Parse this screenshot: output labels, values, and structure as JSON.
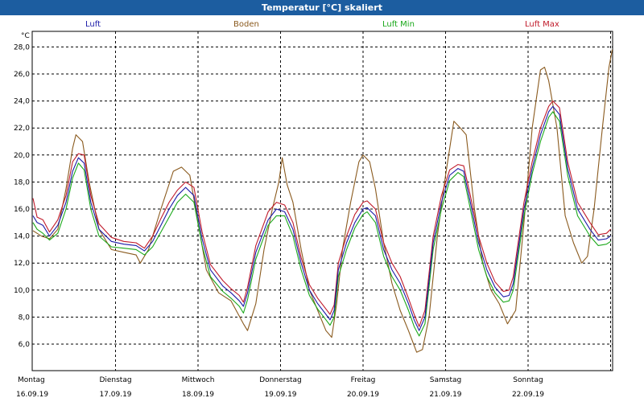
{
  "window": {
    "title": "Temperatur [°C] skaliert"
  },
  "chart_data": {
    "type": "line",
    "title": "Temperatur [°C] skaliert",
    "ylabel": "°C",
    "ylim": [
      4.5,
      29.0
    ],
    "yticks": [
      6.0,
      8.0,
      10.0,
      12.0,
      14.0,
      16.0,
      18.0,
      20.0,
      22.0,
      24.0,
      26.0,
      28.0
    ],
    "ytick_labels": [
      "6,0",
      "8,0",
      "10,0",
      "12,0",
      "14,0",
      "16,0",
      "18,0",
      "20,0",
      "22,0",
      "24,0",
      "26,0",
      "28,0"
    ],
    "xlim": [
      0,
      7.05
    ],
    "day_labels": [
      {
        "day": "Montag",
        "date": "16.09.19"
      },
      {
        "day": "Dienstag",
        "date": "17.09.19"
      },
      {
        "day": "Mittwoch",
        "date": "18.09.19"
      },
      {
        "day": "Donnerstag",
        "date": "19.09.19"
      },
      {
        "day": "Freitag",
        "date": "20.09.19"
      },
      {
        "day": "Samstag",
        "date": "21.09.19"
      },
      {
        "day": "Sonntag",
        "date": "22.09.19"
      }
    ],
    "grid": true,
    "legend_position": "top",
    "series": [
      {
        "name": "Luft",
        "color": "#1a1aa8",
        "points": [
          [
            0.0,
            15.5
          ],
          [
            0.05,
            15.0
          ],
          [
            0.12,
            14.8
          ],
          [
            0.2,
            14.0
          ],
          [
            0.3,
            14.8
          ],
          [
            0.4,
            16.5
          ],
          [
            0.48,
            18.8
          ],
          [
            0.55,
            19.8
          ],
          [
            0.62,
            19.4
          ],
          [
            0.7,
            16.5
          ],
          [
            0.8,
            14.5
          ],
          [
            0.95,
            13.6
          ],
          [
            1.1,
            13.4
          ],
          [
            1.25,
            13.3
          ],
          [
            1.35,
            12.9
          ],
          [
            1.45,
            13.6
          ],
          [
            1.55,
            14.8
          ],
          [
            1.65,
            16.0
          ],
          [
            1.75,
            17.0
          ],
          [
            1.85,
            17.6
          ],
          [
            1.95,
            17.0
          ],
          [
            2.05,
            13.8
          ],
          [
            2.15,
            11.5
          ],
          [
            2.3,
            10.3
          ],
          [
            2.4,
            9.8
          ],
          [
            2.5,
            9.2
          ],
          [
            2.55,
            8.8
          ],
          [
            2.6,
            9.8
          ],
          [
            2.7,
            12.8
          ],
          [
            2.85,
            15.2
          ],
          [
            2.95,
            16.0
          ],
          [
            3.05,
            15.8
          ],
          [
            3.15,
            14.5
          ],
          [
            3.25,
            12.0
          ],
          [
            3.35,
            10.0
          ],
          [
            3.45,
            9.0
          ],
          [
            3.55,
            8.2
          ],
          [
            3.6,
            7.8
          ],
          [
            3.65,
            8.5
          ],
          [
            3.7,
            11.5
          ],
          [
            3.8,
            13.5
          ],
          [
            3.9,
            15.0
          ],
          [
            4.0,
            16.0
          ],
          [
            4.05,
            16.1
          ],
          [
            4.15,
            15.5
          ],
          [
            4.25,
            13.0
          ],
          [
            4.35,
            11.5
          ],
          [
            4.45,
            10.5
          ],
          [
            4.55,
            9.0
          ],
          [
            4.62,
            7.8
          ],
          [
            4.68,
            7.0
          ],
          [
            4.75,
            8.0
          ],
          [
            4.85,
            13.5
          ],
          [
            4.95,
            16.5
          ],
          [
            5.05,
            18.5
          ],
          [
            5.15,
            19.0
          ],
          [
            5.22,
            18.8
          ],
          [
            5.3,
            16.5
          ],
          [
            5.4,
            13.5
          ],
          [
            5.5,
            11.5
          ],
          [
            5.6,
            10.2
          ],
          [
            5.7,
            9.5
          ],
          [
            5.77,
            9.6
          ],
          [
            5.82,
            10.5
          ],
          [
            5.95,
            16.0
          ],
          [
            6.05,
            19.0
          ],
          [
            6.15,
            21.5
          ],
          [
            6.25,
            23.2
          ],
          [
            6.3,
            23.6
          ],
          [
            6.38,
            23.0
          ],
          [
            6.48,
            19.0
          ],
          [
            6.6,
            16.0
          ],
          [
            6.75,
            14.5
          ],
          [
            6.85,
            13.7
          ],
          [
            6.95,
            13.8
          ],
          [
            7.0,
            14.0
          ]
        ]
      },
      {
        "name": "Boden",
        "color": "#8a5a1e",
        "points": [
          [
            0.0,
            14.4
          ],
          [
            0.1,
            14.0
          ],
          [
            0.2,
            13.8
          ],
          [
            0.3,
            14.5
          ],
          [
            0.4,
            17.5
          ],
          [
            0.48,
            20.5
          ],
          [
            0.52,
            21.5
          ],
          [
            0.6,
            21.0
          ],
          [
            0.68,
            18.0
          ],
          [
            0.8,
            14.5
          ],
          [
            0.95,
            13.0
          ],
          [
            1.1,
            12.8
          ],
          [
            1.25,
            12.6
          ],
          [
            1.3,
            12.0
          ],
          [
            1.4,
            13.0
          ],
          [
            1.55,
            16.0
          ],
          [
            1.7,
            18.8
          ],
          [
            1.8,
            19.1
          ],
          [
            1.9,
            18.5
          ],
          [
            2.0,
            15.0
          ],
          [
            2.1,
            11.5
          ],
          [
            2.25,
            9.8
          ],
          [
            2.4,
            9.2
          ],
          [
            2.55,
            7.5
          ],
          [
            2.6,
            7.0
          ],
          [
            2.7,
            9.0
          ],
          [
            2.8,
            13.0
          ],
          [
            2.9,
            16.0
          ],
          [
            2.98,
            18.0
          ],
          [
            3.02,
            19.8
          ],
          [
            3.08,
            17.8
          ],
          [
            3.15,
            16.5
          ],
          [
            3.25,
            13.0
          ],
          [
            3.35,
            10.0
          ],
          [
            3.45,
            8.5
          ],
          [
            3.55,
            7.0
          ],
          [
            3.62,
            6.5
          ],
          [
            3.68,
            9.0
          ],
          [
            3.75,
            13.0
          ],
          [
            3.85,
            16.5
          ],
          [
            3.95,
            19.5
          ],
          [
            4.0,
            20.0
          ],
          [
            4.08,
            19.5
          ],
          [
            4.15,
            17.5
          ],
          [
            4.25,
            13.5
          ],
          [
            4.35,
            10.5
          ],
          [
            4.45,
            8.5
          ],
          [
            4.55,
            7.0
          ],
          [
            4.65,
            5.4
          ],
          [
            4.72,
            5.6
          ],
          [
            4.8,
            8.0
          ],
          [
            4.9,
            14.0
          ],
          [
            5.0,
            18.5
          ],
          [
            5.1,
            22.5
          ],
          [
            5.18,
            22.0
          ],
          [
            5.25,
            21.5
          ],
          [
            5.35,
            16.0
          ],
          [
            5.45,
            12.0
          ],
          [
            5.55,
            10.0
          ],
          [
            5.65,
            9.0
          ],
          [
            5.75,
            7.5
          ],
          [
            5.85,
            8.5
          ],
          [
            5.95,
            15.0
          ],
          [
            6.05,
            22.0
          ],
          [
            6.15,
            26.3
          ],
          [
            6.2,
            26.5
          ],
          [
            6.25,
            25.5
          ],
          [
            6.35,
            22.0
          ],
          [
            6.45,
            15.5
          ],
          [
            6.55,
            13.5
          ],
          [
            6.65,
            12.0
          ],
          [
            6.72,
            12.5
          ],
          [
            6.8,
            16.0
          ],
          [
            6.9,
            22.0
          ],
          [
            6.98,
            26.5
          ],
          [
            7.02,
            27.8
          ]
        ]
      },
      {
        "name": "Luft Min",
        "color": "#1aa81a",
        "points": [
          [
            0.0,
            15.0
          ],
          [
            0.05,
            14.5
          ],
          [
            0.12,
            14.2
          ],
          [
            0.2,
            13.7
          ],
          [
            0.3,
            14.2
          ],
          [
            0.4,
            16.0
          ],
          [
            0.48,
            18.3
          ],
          [
            0.55,
            19.4
          ],
          [
            0.62,
            18.9
          ],
          [
            0.7,
            16.0
          ],
          [
            0.8,
            14.0
          ],
          [
            0.95,
            13.2
          ],
          [
            1.1,
            13.1
          ],
          [
            1.25,
            13.0
          ],
          [
            1.35,
            12.6
          ],
          [
            1.45,
            13.2
          ],
          [
            1.55,
            14.3
          ],
          [
            1.65,
            15.4
          ],
          [
            1.75,
            16.5
          ],
          [
            1.85,
            17.1
          ],
          [
            1.95,
            16.5
          ],
          [
            2.05,
            13.3
          ],
          [
            2.15,
            11.0
          ],
          [
            2.3,
            9.9
          ],
          [
            2.4,
            9.4
          ],
          [
            2.5,
            8.8
          ],
          [
            2.55,
            8.3
          ],
          [
            2.6,
            9.3
          ],
          [
            2.7,
            12.3
          ],
          [
            2.85,
            14.8
          ],
          [
            2.95,
            15.5
          ],
          [
            3.05,
            15.5
          ],
          [
            3.15,
            14.0
          ],
          [
            3.25,
            11.5
          ],
          [
            3.35,
            9.6
          ],
          [
            3.45,
            8.6
          ],
          [
            3.55,
            7.8
          ],
          [
            3.6,
            7.4
          ],
          [
            3.65,
            8.0
          ],
          [
            3.7,
            11.0
          ],
          [
            3.8,
            13.0
          ],
          [
            3.9,
            14.6
          ],
          [
            4.0,
            15.6
          ],
          [
            4.05,
            15.8
          ],
          [
            4.15,
            15.0
          ],
          [
            4.25,
            12.5
          ],
          [
            4.35,
            11.0
          ],
          [
            4.45,
            10.0
          ],
          [
            4.55,
            8.5
          ],
          [
            4.62,
            7.3
          ],
          [
            4.68,
            6.6
          ],
          [
            4.75,
            7.5
          ],
          [
            4.85,
            13.0
          ],
          [
            4.95,
            16.0
          ],
          [
            5.05,
            18.1
          ],
          [
            5.15,
            18.7
          ],
          [
            5.22,
            18.4
          ],
          [
            5.3,
            16.0
          ],
          [
            5.4,
            13.0
          ],
          [
            5.5,
            11.0
          ],
          [
            5.6,
            9.8
          ],
          [
            5.7,
            9.1
          ],
          [
            5.77,
            9.2
          ],
          [
            5.82,
            10.0
          ],
          [
            5.95,
            15.5
          ],
          [
            6.05,
            18.6
          ],
          [
            6.15,
            21.0
          ],
          [
            6.25,
            22.8
          ],
          [
            6.3,
            23.2
          ],
          [
            6.38,
            22.5
          ],
          [
            6.48,
            18.5
          ],
          [
            6.6,
            15.5
          ],
          [
            6.75,
            14.0
          ],
          [
            6.85,
            13.3
          ],
          [
            6.95,
            13.4
          ],
          [
            7.0,
            13.6
          ]
        ]
      },
      {
        "name": "Luft Max",
        "color": "#c01a2a",
        "points": [
          [
            0.0,
            16.8
          ],
          [
            0.05,
            15.4
          ],
          [
            0.12,
            15.2
          ],
          [
            0.2,
            14.3
          ],
          [
            0.3,
            15.2
          ],
          [
            0.4,
            17.0
          ],
          [
            0.48,
            19.5
          ],
          [
            0.55,
            20.1
          ],
          [
            0.62,
            20.0
          ],
          [
            0.7,
            17.0
          ],
          [
            0.8,
            14.9
          ],
          [
            0.95,
            13.9
          ],
          [
            1.1,
            13.6
          ],
          [
            1.25,
            13.5
          ],
          [
            1.35,
            13.1
          ],
          [
            1.45,
            14.0
          ],
          [
            1.55,
            15.3
          ],
          [
            1.65,
            16.5
          ],
          [
            1.75,
            17.4
          ],
          [
            1.85,
            18.0
          ],
          [
            1.95,
            17.6
          ],
          [
            2.05,
            14.3
          ],
          [
            2.15,
            11.9
          ],
          [
            2.3,
            10.7
          ],
          [
            2.4,
            10.1
          ],
          [
            2.5,
            9.6
          ],
          [
            2.55,
            9.1
          ],
          [
            2.6,
            10.2
          ],
          [
            2.7,
            13.3
          ],
          [
            2.85,
            15.8
          ],
          [
            2.95,
            16.5
          ],
          [
            3.05,
            16.3
          ],
          [
            3.15,
            15.0
          ],
          [
            3.25,
            12.4
          ],
          [
            3.35,
            10.4
          ],
          [
            3.45,
            9.4
          ],
          [
            3.55,
            8.6
          ],
          [
            3.6,
            8.2
          ],
          [
            3.65,
            8.9
          ],
          [
            3.7,
            12.0
          ],
          [
            3.8,
            14.0
          ],
          [
            3.9,
            15.6
          ],
          [
            4.0,
            16.5
          ],
          [
            4.05,
            16.6
          ],
          [
            4.15,
            16.0
          ],
          [
            4.25,
            13.5
          ],
          [
            4.35,
            12.0
          ],
          [
            4.45,
            11.0
          ],
          [
            4.55,
            9.4
          ],
          [
            4.62,
            8.2
          ],
          [
            4.68,
            7.3
          ],
          [
            4.75,
            8.5
          ],
          [
            4.85,
            14.0
          ],
          [
            4.95,
            17.0
          ],
          [
            5.05,
            18.9
          ],
          [
            5.15,
            19.3
          ],
          [
            5.22,
            19.2
          ],
          [
            5.3,
            17.0
          ],
          [
            5.4,
            14.0
          ],
          [
            5.5,
            12.0
          ],
          [
            5.6,
            10.6
          ],
          [
            5.7,
            9.9
          ],
          [
            5.77,
            10.0
          ],
          [
            5.82,
            11.0
          ],
          [
            5.95,
            16.5
          ],
          [
            6.05,
            19.5
          ],
          [
            6.15,
            22.0
          ],
          [
            6.25,
            23.6
          ],
          [
            6.3,
            24.0
          ],
          [
            6.38,
            23.5
          ],
          [
            6.48,
            19.5
          ],
          [
            6.6,
            16.5
          ],
          [
            6.75,
            15.0
          ],
          [
            6.85,
            14.1
          ],
          [
            6.95,
            14.2
          ],
          [
            7.0,
            14.5
          ]
        ]
      }
    ]
  }
}
